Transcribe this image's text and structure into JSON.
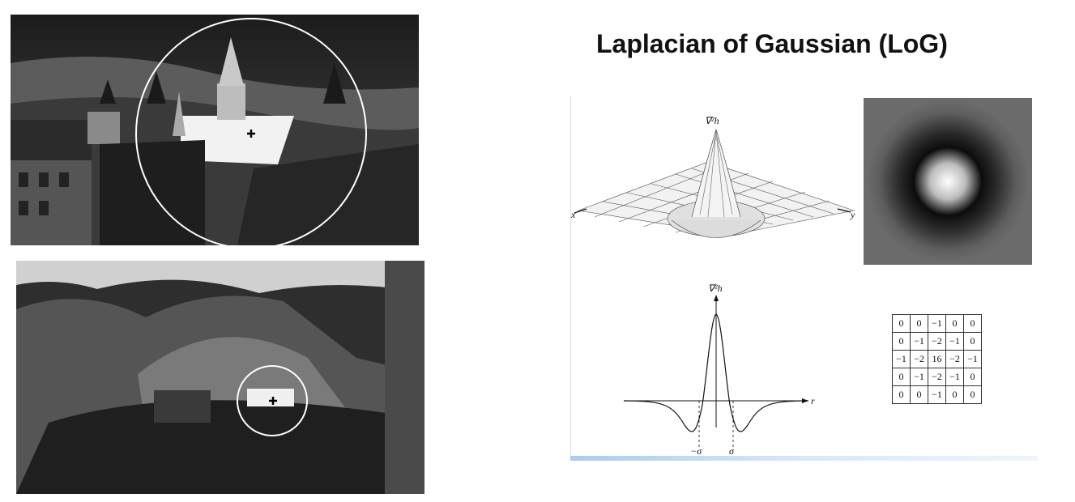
{
  "title": "Laplacian of Gaussian (LoG)",
  "surface_plot": {
    "z_label": "∇²h",
    "x_label": "x",
    "y_label": "y"
  },
  "profile_plot": {
    "y_label": "∇²h",
    "r_label": "r",
    "neg_sigma_label": "−σ",
    "pos_sigma_label": "σ"
  },
  "kernel": [
    [
      "0",
      "0",
      "−1",
      "0",
      "0"
    ],
    [
      "0",
      "−1",
      "−2",
      "−1",
      "0"
    ],
    [
      "−1",
      "−2",
      "16",
      "−2",
      "−1"
    ],
    [
      "0",
      "−1",
      "−2",
      "−1",
      "0"
    ],
    [
      "0",
      "0",
      "−1",
      "0",
      "0"
    ]
  ],
  "colors": {
    "figure_band": "#aaccf0",
    "photo_dark": "#2a2a2a",
    "detection_circle": "#ffffff"
  }
}
